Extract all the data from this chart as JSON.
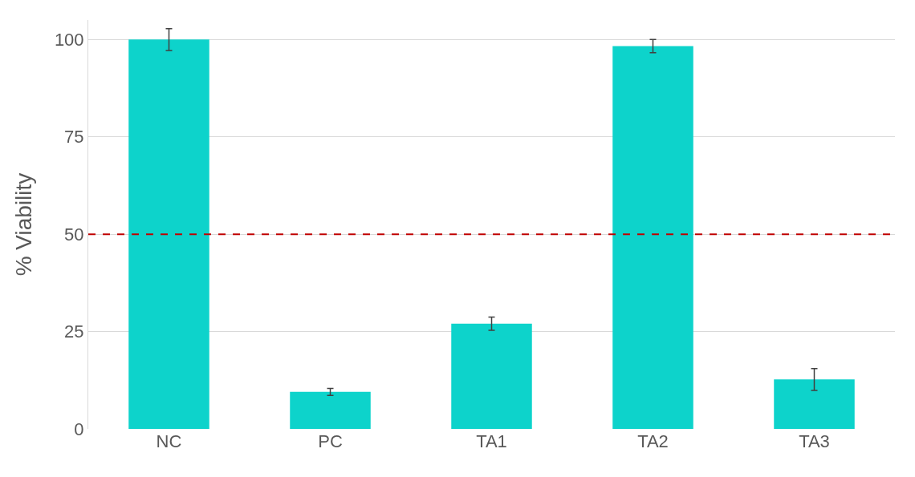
{
  "chart_data": {
    "type": "bar",
    "ylabel": "% Viability",
    "categories": [
      "NC",
      "PC",
      "TA1",
      "TA2",
      "TA3"
    ],
    "values": [
      100,
      9.5,
      27,
      98.3,
      12.7
    ],
    "errors": [
      2.8,
      0.9,
      1.7,
      1.7,
      2.8
    ],
    "color": "#0dd3cb",
    "ylim": [
      0,
      105
    ],
    "yticks": [
      0,
      25,
      50,
      75,
      100
    ],
    "grid": "y",
    "ref_lines": [
      {
        "axis": "y",
        "value": 50,
        "color": "#c00000",
        "line_style": "dashed"
      }
    ]
  }
}
